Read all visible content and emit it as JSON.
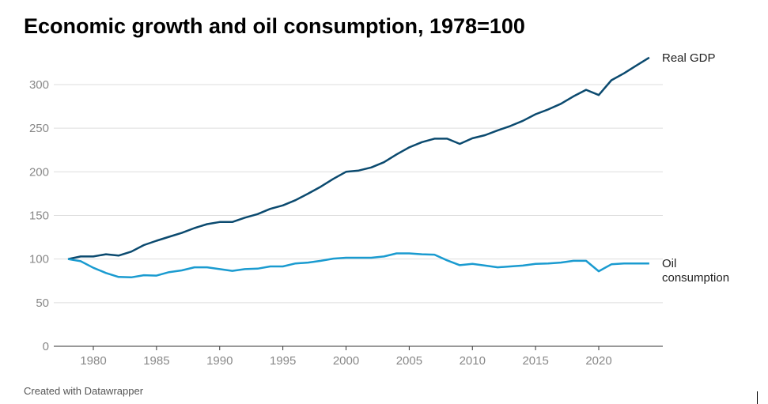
{
  "chart_data": {
    "type": "line",
    "title": "Economic growth and oil consumption, 1978=100",
    "xlabel": "",
    "ylabel": "",
    "xlim": [
      1978,
      2024
    ],
    "ylim": [
      0,
      330
    ],
    "grid": true,
    "x_ticks": [
      "1980",
      "1985",
      "1990",
      "1995",
      "2000",
      "2005",
      "2010",
      "2015",
      "2020"
    ],
    "y_ticks": [
      "0",
      "50",
      "100",
      "150",
      "200",
      "250",
      "300"
    ],
    "x": [
      1978,
      1979,
      1980,
      1981,
      1982,
      1983,
      1984,
      1985,
      1986,
      1987,
      1988,
      1989,
      1990,
      1991,
      1992,
      1993,
      1994,
      1995,
      1996,
      1997,
      1998,
      1999,
      2000,
      2001,
      2002,
      2003,
      2004,
      2005,
      2006,
      2007,
      2008,
      2009,
      2010,
      2011,
      2012,
      2013,
      2014,
      2015,
      2016,
      2017,
      2018,
      2019,
      2020,
      2021,
      2022,
      2023,
      2024
    ],
    "series": [
      {
        "name": "Real GDP",
        "color": "#0b4a6f",
        "values": [
          100,
          103,
          103,
          105.5,
          104,
          108.5,
          116,
          121,
          125.5,
          130,
          135.5,
          140,
          142.5,
          142.5,
          147.5,
          151.5,
          157.5,
          161.5,
          167.5,
          175,
          183,
          192,
          200,
          201.5,
          205,
          211,
          220,
          228,
          234,
          238,
          238,
          232,
          238.5,
          242,
          247.5,
          252.5,
          258.5,
          266,
          271.5,
          278,
          286.5,
          294,
          288,
          305,
          313,
          322,
          331
        ]
      },
      {
        "name": "Oil consumption",
        "label_lines": [
          "Oil",
          "consumption"
        ],
        "color": "#1a9bd0",
        "values": [
          100,
          97.5,
          90,
          84,
          79.5,
          79,
          81.5,
          81,
          85,
          87,
          90.5,
          90.5,
          88.5,
          86.5,
          88.5,
          89,
          91.5,
          91.5,
          95,
          96,
          98,
          100.5,
          101.5,
          101.5,
          101.5,
          103,
          106.5,
          106.5,
          105.5,
          105,
          98.5,
          93,
          94.5,
          92.5,
          90.5,
          91.5,
          92.5,
          94.5,
          95,
          96,
          98,
          98,
          86,
          94,
          95,
          95,
          95
        ]
      }
    ],
    "credit": "Created with Datawrapper"
  }
}
